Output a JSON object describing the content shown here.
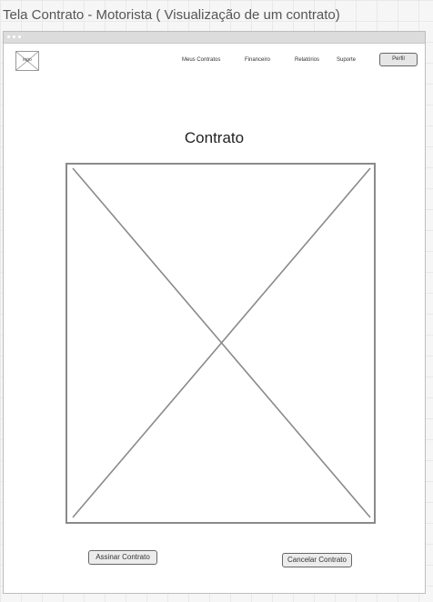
{
  "page": {
    "title": "Tela Contrato - Motorista ( Visualização de um contrato)"
  },
  "header": {
    "logo_label": "logo",
    "nav": [
      {
        "label": "Meus Contratos"
      },
      {
        "label": "Financeiro"
      },
      {
        "label": "Relatórios"
      },
      {
        "label": "Suporte"
      }
    ],
    "profile_label": "Perfil"
  },
  "main": {
    "heading": "Contrato",
    "sign_label": "Assinar Contrato",
    "cancel_label": "Cancelar Contrato"
  }
}
